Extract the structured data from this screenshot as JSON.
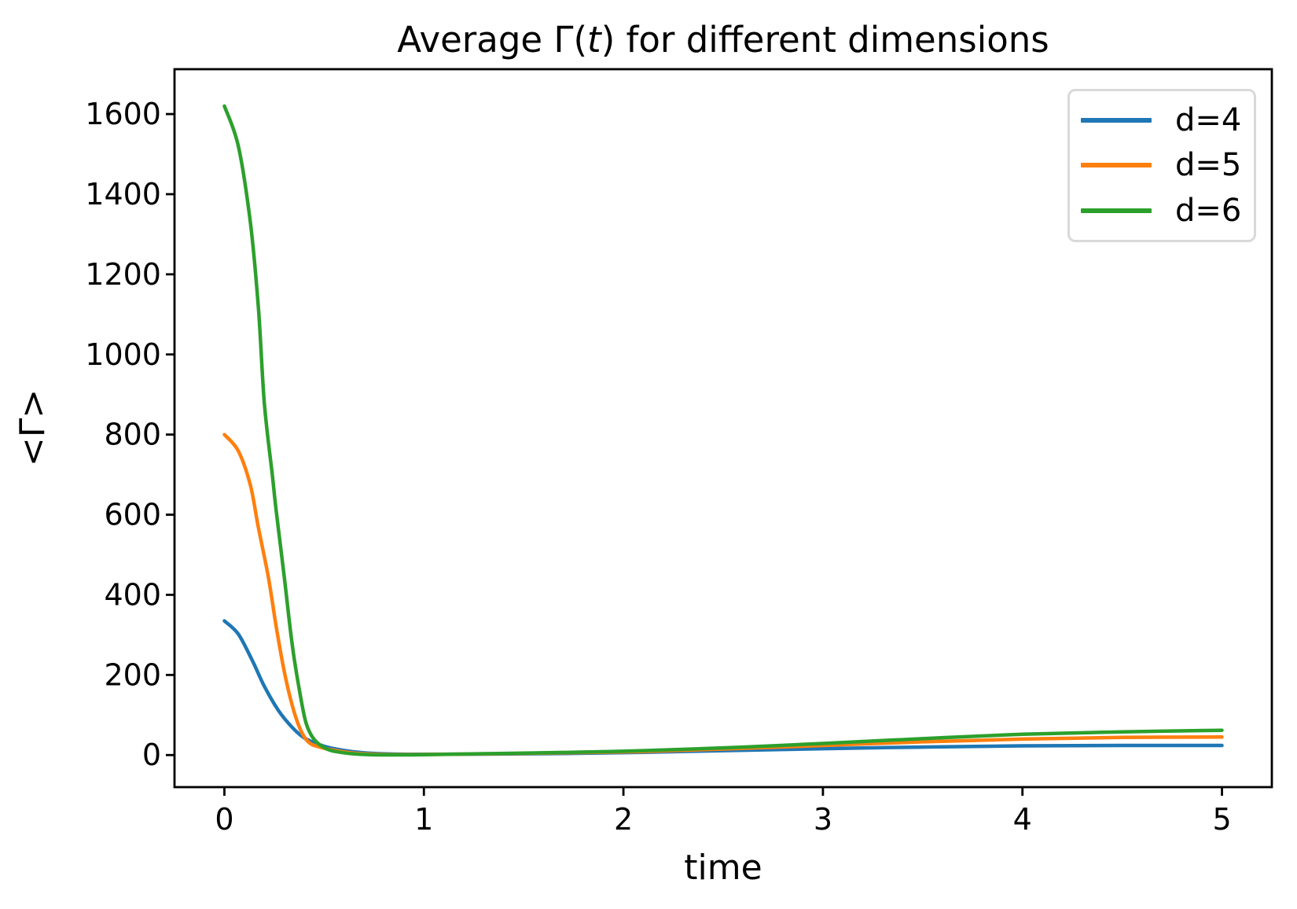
{
  "figure": {
    "title_prefix": "Average Γ(",
    "title_italic": "t",
    "title_suffix": ") for different dimensions",
    "xlabel": "time",
    "ylabel": "<Γ>"
  },
  "chart_data": {
    "type": "line",
    "title": "Average Γ(t) for different dimensions",
    "xlabel": "time",
    "ylabel": "<Γ>",
    "xlim": [
      -0.25,
      5.25
    ],
    "ylim": [
      -80,
      1712
    ],
    "x_ticks": [
      0,
      1,
      2,
      3,
      4,
      5
    ],
    "y_ticks": [
      0,
      200,
      400,
      600,
      800,
      1000,
      1200,
      1400,
      1600
    ],
    "grid": false,
    "legend_position": "upper right",
    "axis_color": "#000000",
    "series": [
      {
        "name": "d=4",
        "color": "#1f77b4",
        "initial_value": 335,
        "final_value": 24,
        "points": [
          [
            0,
            335
          ],
          [
            0.07,
            302
          ],
          [
            0.14,
            236
          ],
          [
            0.2,
            172
          ],
          [
            0.27,
            112
          ],
          [
            0.34,
            69
          ],
          [
            0.4,
            43
          ],
          [
            0.47,
            27
          ],
          [
            0.53,
            18
          ],
          [
            0.62,
            10
          ],
          [
            0.72,
            5
          ],
          [
            0.85,
            2.5
          ],
          [
            1.0,
            2
          ],
          [
            1.3,
            2.5
          ],
          [
            1.7,
            4
          ],
          [
            2.1,
            7
          ],
          [
            2.6,
            12
          ],
          [
            3.0,
            16
          ],
          [
            3.5,
            20
          ],
          [
            4.0,
            23
          ],
          [
            4.5,
            24
          ],
          [
            5.0,
            24
          ]
        ]
      },
      {
        "name": "d=5",
        "color": "#ff7f0e",
        "initial_value": 800,
        "final_value": 45,
        "points": [
          [
            0,
            800
          ],
          [
            0.07,
            759
          ],
          [
            0.13,
            674
          ],
          [
            0.17,
            569
          ],
          [
            0.22,
            445
          ],
          [
            0.26,
            320
          ],
          [
            0.3,
            209
          ],
          [
            0.34,
            124
          ],
          [
            0.38,
            65
          ],
          [
            0.42,
            33
          ],
          [
            0.47,
            21
          ],
          [
            0.55,
            12
          ],
          [
            0.65,
            5
          ],
          [
            0.8,
            1.5
          ],
          [
            1.0,
            1.5
          ],
          [
            1.3,
            3
          ],
          [
            1.7,
            5.5
          ],
          [
            2.1,
            9
          ],
          [
            2.6,
            17
          ],
          [
            3.0,
            24
          ],
          [
            3.5,
            33
          ],
          [
            4.0,
            40
          ],
          [
            4.5,
            44
          ],
          [
            5.0,
            45
          ]
        ]
      },
      {
        "name": "d=6",
        "color": "#2ca02c",
        "initial_value": 1620,
        "final_value": 62,
        "points": [
          [
            0,
            1620
          ],
          [
            0.07,
            1520
          ],
          [
            0.13,
            1330
          ],
          [
            0.17,
            1120
          ],
          [
            0.2,
            880
          ],
          [
            0.24,
            700
          ],
          [
            0.26,
            609
          ],
          [
            0.3,
            445
          ],
          [
            0.34,
            275
          ],
          [
            0.38,
            151
          ],
          [
            0.41,
            79
          ],
          [
            0.45,
            39
          ],
          [
            0.51,
            16
          ],
          [
            0.58,
            7
          ],
          [
            0.68,
            2
          ],
          [
            0.8,
            0.5
          ],
          [
            1.0,
            1
          ],
          [
            1.3,
            3.5
          ],
          [
            1.7,
            6.5
          ],
          [
            2.1,
            11
          ],
          [
            2.6,
            20
          ],
          [
            3.0,
            29
          ],
          [
            3.5,
            41
          ],
          [
            4.0,
            52
          ],
          [
            4.5,
            58
          ],
          [
            5.0,
            62
          ]
        ]
      }
    ]
  }
}
